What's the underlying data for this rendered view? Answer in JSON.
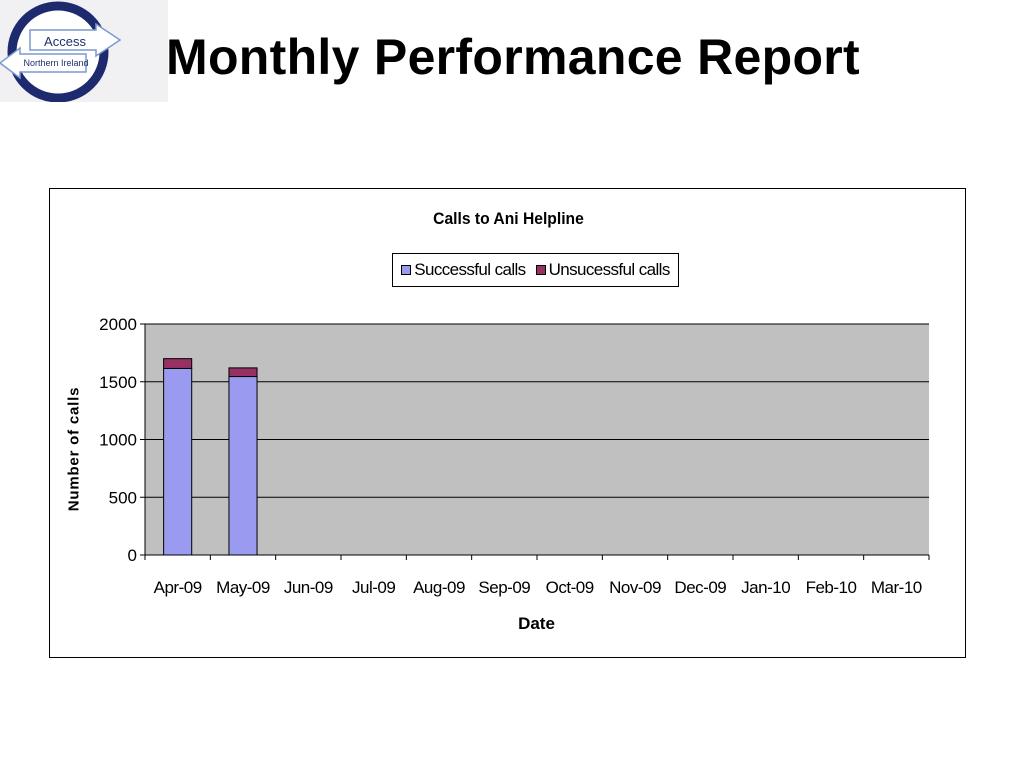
{
  "logo": {
    "line1": "Access",
    "line2": "Northern Ireland"
  },
  "page_title": "Monthly Performance Report",
  "colors": {
    "successful": "#9a9af0",
    "unsuccessful": "#973163",
    "plot_background": "#c0c0c0",
    "logo_ring": "#1e2a6e"
  },
  "chart_data": {
    "type": "bar",
    "stacked": true,
    "title": "Calls to Ani Helpline",
    "xlabel": "Date",
    "ylabel": "Number of calls",
    "categories": [
      "Apr-09",
      "May-09",
      "Jun-09",
      "Jul-09",
      "Aug-09",
      "Sep-09",
      "Oct-09",
      "Nov-09",
      "Dec-09",
      "Jan-10",
      "Feb-10",
      "Mar-10"
    ],
    "series": [
      {
        "name": "Successful calls",
        "values": [
          1615,
          1545,
          null,
          null,
          null,
          null,
          null,
          null,
          null,
          null,
          null,
          null
        ]
      },
      {
        "name": "Unsucessful calls",
        "values": [
          85,
          75,
          null,
          null,
          null,
          null,
          null,
          null,
          null,
          null,
          null,
          null
        ]
      }
    ],
    "ylim": [
      0,
      2000
    ],
    "yticks": [
      0,
      500,
      1000,
      1500,
      2000
    ],
    "grid": true,
    "legend_position": "top"
  }
}
